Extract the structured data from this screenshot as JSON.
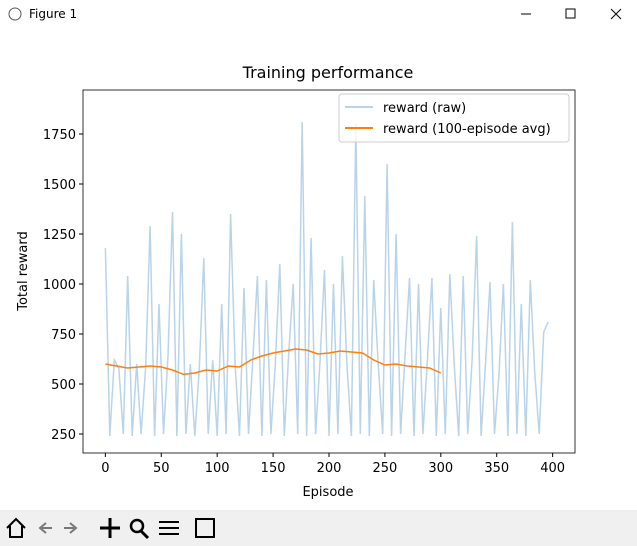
{
  "window_title": "Figure 1",
  "chart_data": {
    "type": "line",
    "title": "Training performance",
    "x_label": "Episode",
    "y_label": "Total reward",
    "xlim": [
      -20,
      420
    ],
    "ylim": [
      155,
      1970
    ],
    "xticks": [
      0,
      50,
      100,
      150,
      200,
      250,
      300,
      350,
      400
    ],
    "yticks": [
      250,
      500,
      750,
      1000,
      1250,
      1500,
      1750
    ],
    "legend": "upper right",
    "series": [
      {
        "name": "reward (raw)",
        "color": "#b9d3e8",
        "x": [
          0,
          4,
          8,
          12,
          16,
          20,
          24,
          28,
          32,
          36,
          40,
          44,
          48,
          52,
          56,
          60,
          64,
          68,
          72,
          76,
          80,
          84,
          88,
          92,
          96,
          100,
          104,
          108,
          112,
          116,
          120,
          124,
          128,
          132,
          136,
          140,
          144,
          148,
          152,
          156,
          160,
          164,
          168,
          172,
          176,
          180,
          184,
          188,
          192,
          196,
          200,
          204,
          208,
          212,
          216,
          220,
          224,
          228,
          232,
          236,
          240,
          244,
          248,
          252,
          256,
          260,
          264,
          268,
          272,
          276,
          280,
          284,
          288,
          292,
          296,
          300,
          304,
          308,
          312,
          316,
          320,
          324,
          328,
          332,
          336,
          340,
          344,
          348,
          352,
          356,
          360,
          364,
          368,
          372,
          376,
          380,
          384,
          388,
          392,
          396
        ],
        "values": [
          1180,
          240,
          620,
          580,
          250,
          1040,
          240,
          600,
          250,
          580,
          1290,
          240,
          900,
          250,
          640,
          1360,
          240,
          1250,
          250,
          600,
          240,
          580,
          1130,
          250,
          620,
          240,
          900,
          250,
          1350,
          600,
          240,
          980,
          250,
          640,
          1040,
          240,
          1020,
          250,
          600,
          1100,
          240,
          650,
          1000,
          250,
          1810,
          240,
          1230,
          250,
          620,
          1070,
          240,
          1000,
          250,
          1140,
          600,
          240,
          1800,
          250,
          1440,
          240,
          1020,
          600,
          250,
          1600,
          240,
          1250,
          250,
          640,
          1030,
          240,
          1000,
          250,
          620,
          1030,
          240,
          880,
          250,
          1050,
          600,
          240,
          1040,
          250,
          620,
          1240,
          240,
          600,
          1010,
          250,
          550,
          1000,
          240,
          1310,
          250,
          900,
          240,
          1020,
          560,
          250,
          760,
          810
        ]
      },
      {
        "name": "reward (100-episode avg)",
        "color": "#ff7f0e",
        "x": [
          0,
          10,
          20,
          30,
          40,
          50,
          60,
          70,
          80,
          90,
          100,
          110,
          120,
          130,
          140,
          150,
          160,
          170,
          180,
          190,
          200,
          210,
          220,
          230,
          240,
          250,
          260,
          270,
          280,
          290,
          300
        ],
        "values": [
          600,
          590,
          580,
          585,
          590,
          585,
          570,
          548,
          555,
          570,
          565,
          590,
          585,
          620,
          640,
          655,
          665,
          675,
          670,
          650,
          655,
          665,
          660,
          655,
          620,
          595,
          600,
          590,
          585,
          580,
          555
        ]
      }
    ]
  }
}
